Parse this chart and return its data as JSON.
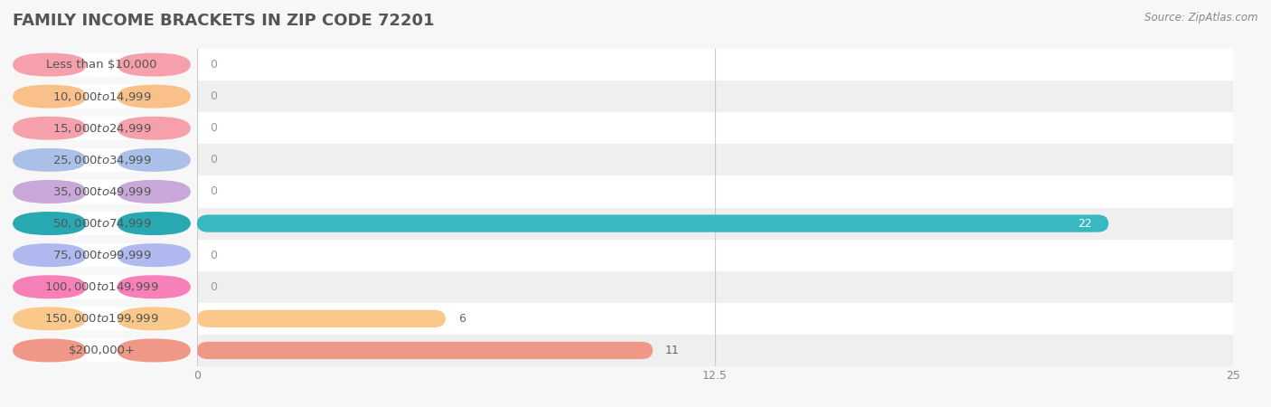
{
  "title": "FAMILY INCOME BRACKETS IN ZIP CODE 72201",
  "source": "Source: ZipAtlas.com",
  "categories": [
    "Less than $10,000",
    "$10,000 to $14,999",
    "$15,000 to $24,999",
    "$25,000 to $34,999",
    "$35,000 to $49,999",
    "$50,000 to $74,999",
    "$75,000 to $99,999",
    "$100,000 to $149,999",
    "$150,000 to $199,999",
    "$200,000+"
  ],
  "values": [
    0,
    0,
    0,
    0,
    0,
    22,
    0,
    0,
    6,
    11
  ],
  "bar_colors": [
    "#f5a0aa",
    "#f9c08a",
    "#f5a0aa",
    "#aac0e8",
    "#c8a8d8",
    "#3ab8c0",
    "#b0b8f0",
    "#f880b8",
    "#f9c88a",
    "#f09888"
  ],
  "pill_colors": [
    "#f5a0aa",
    "#f9c08a",
    "#f5a0aa",
    "#aac0e8",
    "#c8a8d8",
    "#28a8b0",
    "#b0b8f0",
    "#f880b8",
    "#f9c88a",
    "#f09888"
  ],
  "xlim": [
    0,
    25
  ],
  "xticks": [
    0,
    12.5,
    25
  ],
  "xtick_labels": [
    "0",
    "12.5",
    "25"
  ],
  "bg_color": "#f7f7f7",
  "row_colors": [
    "#ffffff",
    "#efefef"
  ],
  "title_fontsize": 13,
  "source_fontsize": 8.5,
  "label_fontsize": 9.5,
  "value_fontsize": 9,
  "bar_height": 0.55
}
